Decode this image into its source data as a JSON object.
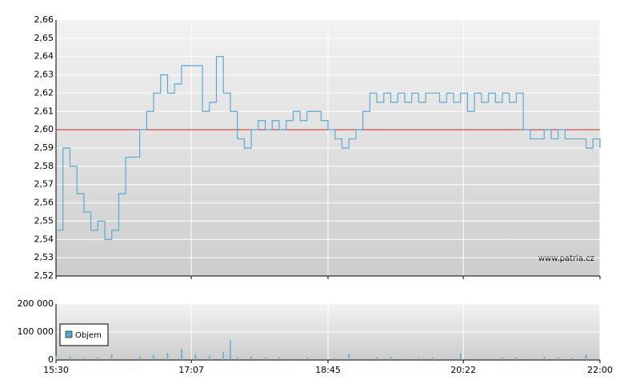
{
  "chart_data": [
    {
      "type": "line",
      "x": [
        "15:30",
        "15:35",
        "15:40",
        "15:45",
        "15:50",
        "15:55",
        "16:00",
        "16:05",
        "16:10",
        "16:15",
        "16:20",
        "16:25",
        "16:30",
        "16:35",
        "16:40",
        "16:45",
        "16:50",
        "16:55",
        "17:00",
        "17:05",
        "17:10",
        "17:15",
        "17:20",
        "17:25",
        "17:30",
        "17:35",
        "17:40",
        "17:45",
        "17:50",
        "17:55",
        "18:00",
        "18:05",
        "18:10",
        "18:15",
        "18:20",
        "18:25",
        "18:30",
        "18:35",
        "18:40",
        "18:45",
        "18:50",
        "18:55",
        "19:00",
        "19:05",
        "19:10",
        "19:15",
        "19:20",
        "19:25",
        "19:30",
        "19:35",
        "19:40",
        "19:45",
        "19:50",
        "19:55",
        "20:00",
        "20:05",
        "20:10",
        "20:15",
        "20:20",
        "20:25",
        "20:30",
        "20:35",
        "20:40",
        "20:45",
        "20:50",
        "20:55",
        "21:00",
        "21:05",
        "21:10",
        "21:15",
        "21:20",
        "21:25",
        "21:30",
        "21:35",
        "21:40",
        "21:45",
        "21:50",
        "21:55",
        "22:00"
      ],
      "values": [
        2.545,
        2.59,
        2.58,
        2.565,
        2.555,
        2.545,
        2.55,
        2.54,
        2.545,
        2.565,
        2.585,
        2.585,
        2.6,
        2.61,
        2.62,
        2.63,
        2.62,
        2.625,
        2.635,
        2.635,
        2.635,
        2.61,
        2.615,
        2.64,
        2.62,
        2.61,
        2.595,
        2.59,
        2.6,
        2.605,
        2.6,
        2.605,
        2.6,
        2.605,
        2.61,
        2.605,
        2.61,
        2.61,
        2.605,
        2.6,
        2.595,
        2.59,
        2.595,
        2.6,
        2.61,
        2.62,
        2.615,
        2.62,
        2.615,
        2.62,
        2.615,
        2.62,
        2.615,
        2.62,
        2.62,
        2.615,
        2.62,
        2.615,
        2.62,
        2.61,
        2.62,
        2.615,
        2.62,
        2.615,
        2.62,
        2.615,
        2.62,
        2.6,
        2.595,
        2.595,
        2.6,
        2.595,
        2.6,
        2.595,
        2.595,
        2.595,
        2.59,
        2.595,
        2.59
      ],
      "color": "#5aaad2",
      "reference_line": 2.6,
      "reference_color": "#d02020",
      "ylim": [
        2.52,
        2.66
      ],
      "yticks": [
        {
          "value": 2.52,
          "label": "2,52"
        },
        {
          "value": 2.53,
          "label": "2,53"
        },
        {
          "value": 2.54,
          "label": "2,54"
        },
        {
          "value": 2.55,
          "label": "2,55"
        },
        {
          "value": 2.56,
          "label": "2,56"
        },
        {
          "value": 2.57,
          "label": "2,57"
        },
        {
          "value": 2.58,
          "label": "2,58"
        },
        {
          "value": 2.59,
          "label": "2,59"
        },
        {
          "value": 2.6,
          "label": "2,60"
        },
        {
          "value": 2.61,
          "label": "2,61"
        },
        {
          "value": 2.62,
          "label": "2,62"
        },
        {
          "value": 2.63,
          "label": "2,63"
        },
        {
          "value": 2.64,
          "label": "2,64"
        },
        {
          "value": 2.65,
          "label": "2,65"
        },
        {
          "value": 2.66,
          "label": "2,66"
        }
      ],
      "watermark": "www.patria.cz",
      "grid": true
    },
    {
      "type": "bar",
      "x": [
        "15:30",
        "15:40",
        "15:50",
        "16:00",
        "16:10",
        "16:20",
        "16:30",
        "16:40",
        "16:50",
        "17:00",
        "17:10",
        "17:20",
        "17:30",
        "17:35",
        "17:40",
        "17:50",
        "18:00",
        "18:10",
        "18:20",
        "18:30",
        "18:40",
        "18:50",
        "19:00",
        "19:10",
        "19:20",
        "19:30",
        "19:40",
        "19:50",
        "20:00",
        "20:10",
        "20:20",
        "20:30",
        "20:40",
        "20:50",
        "21:00",
        "21:10",
        "21:20",
        "21:30",
        "21:40",
        "21:50"
      ],
      "series": [
        {
          "name": "Objem",
          "color": "#5aaad2",
          "values": [
            15000,
            12000,
            8000,
            10000,
            20000,
            6000,
            12000,
            18000,
            25000,
            40000,
            20000,
            15000,
            28000,
            70000,
            10000,
            12000,
            8000,
            10000,
            6000,
            9000,
            5000,
            8000,
            22000,
            6000,
            10000,
            12000,
            5000,
            8000,
            9000,
            6000,
            25000,
            5000,
            4000,
            8000,
            10000,
            6000,
            12000,
            9000,
            8000,
            20000
          ]
        }
      ],
      "xlim": [
        "15:30",
        "22:00"
      ],
      "xticks": [
        "15:30",
        "17:07",
        "18:45",
        "20:22",
        "22:00"
      ],
      "ylim": [
        0,
        200000
      ],
      "yticks": [
        0,
        {
          "value": 100000,
          "label": "100 000"
        },
        {
          "value": 200000,
          "label": "200 000"
        }
      ],
      "legend": "top-left",
      "grid": true
    }
  ]
}
